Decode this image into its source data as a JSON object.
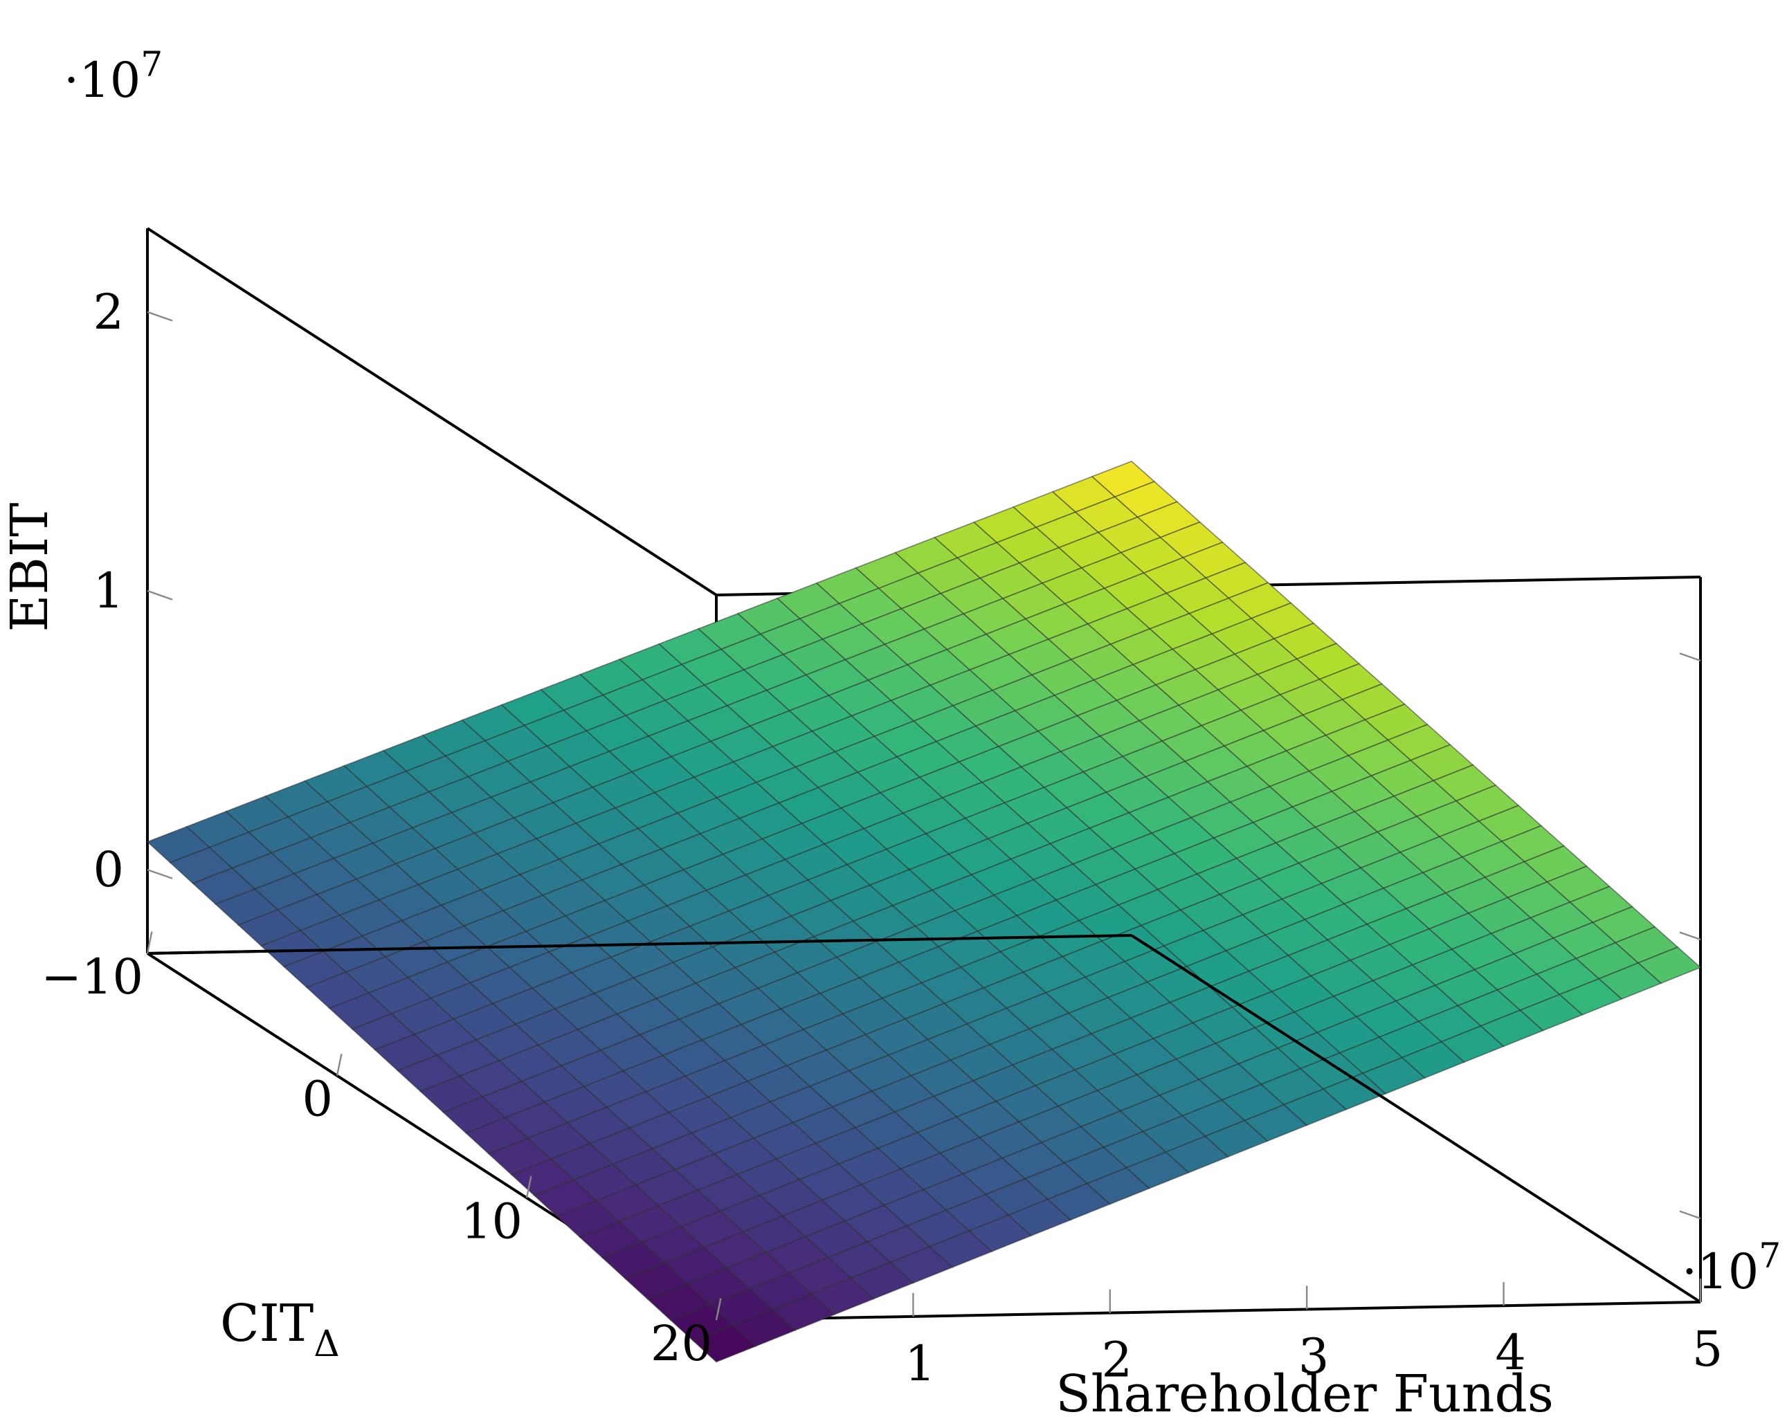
{
  "chart_data": {
    "type": "surface",
    "xlabel": "Shareholder Funds",
    "ylabel": "CIT",
    "ylabel_subscript": "Δ",
    "zlabel": "EBIT",
    "x_scale_label": "·10",
    "x_scale_exp": "7",
    "z_scale_label": "·10",
    "z_scale_exp": "7",
    "xlim": [
      0,
      50000000
    ],
    "ylim": [
      -10,
      20
    ],
    "zlim": [
      -3000000,
      23000000
    ],
    "x_ticks": [
      10000000,
      20000000,
      30000000,
      40000000,
      50000000
    ],
    "x_tick_labels": [
      "1",
      "2",
      "3",
      "4",
      "5"
    ],
    "y_ticks": [
      -10,
      0,
      10,
      20
    ],
    "y_tick_labels": [
      "−10",
      "0",
      "10",
      "20"
    ],
    "z_ticks": [
      0,
      10000000,
      20000000
    ],
    "z_tick_labels": [
      "0",
      "1",
      "2"
    ],
    "surface": {
      "x_range": [
        0,
        50000000
      ],
      "y_range": [
        -10,
        20
      ],
      "corners": [
        {
          "x": 0,
          "y": -10,
          "z": 1000000
        },
        {
          "x": 50000000,
          "y": -10,
          "z": 14000000
        },
        {
          "x": 0,
          "y": 20,
          "z": -4500000
        },
        {
          "x": 50000000,
          "y": 20,
          "z": 9000000
        }
      ],
      "grid_x": 25,
      "grid_y": 25,
      "z_min": -4500000,
      "z_max": 14000000
    },
    "colormap": "viridis",
    "grid": false
  }
}
